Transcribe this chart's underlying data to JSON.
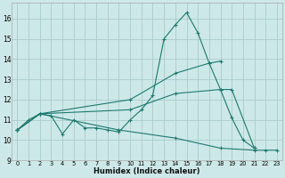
{
  "bg_color": "#cde8e8",
  "grid_color": "#aacccc",
  "line_color": "#1a7a6e",
  "xlabel": "Humidex (Indice chaleur)",
  "xlim": [
    -0.5,
    23.5
  ],
  "ylim": [
    9.0,
    16.8
  ],
  "yticks": [
    9,
    10,
    11,
    12,
    13,
    14,
    15,
    16
  ],
  "curve1_x": [
    0,
    1,
    2,
    3,
    4,
    5,
    6,
    7,
    8,
    9,
    10,
    11,
    12,
    13,
    14,
    15,
    16,
    17,
    18,
    19,
    20,
    21
  ],
  "curve1_y": [
    10.5,
    11.0,
    11.3,
    11.2,
    10.3,
    11.0,
    10.6,
    10.6,
    10.5,
    10.4,
    11.0,
    11.5,
    12.2,
    15.0,
    15.7,
    16.3,
    15.3,
    13.8,
    12.5,
    11.1,
    10.0,
    9.6
  ],
  "line1_x": [
    0,
    2,
    10,
    14,
    17,
    18
  ],
  "line1_y": [
    10.5,
    11.3,
    12.0,
    13.3,
    13.8,
    13.9
  ],
  "line2_x": [
    0,
    2,
    10,
    14,
    18,
    19,
    21
  ],
  "line2_y": [
    10.5,
    11.3,
    11.5,
    12.3,
    12.5,
    12.5,
    9.6
  ],
  "line3_x": [
    0,
    2,
    9,
    14,
    18,
    21,
    22,
    23
  ],
  "line3_y": [
    10.5,
    11.3,
    10.5,
    10.1,
    9.6,
    9.5,
    9.5,
    9.5
  ]
}
